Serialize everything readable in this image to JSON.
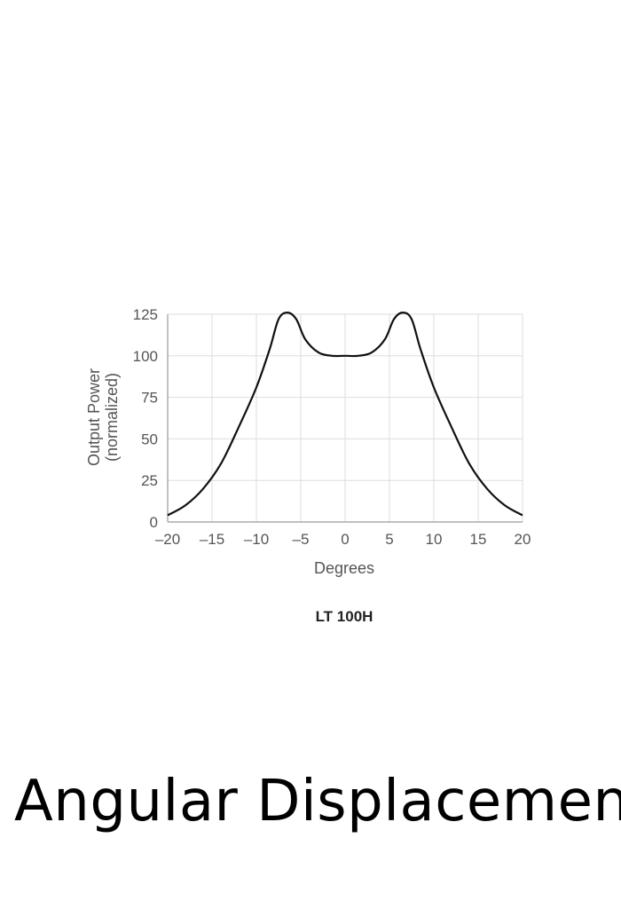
{
  "chart_data": {
    "type": "line",
    "caption": "LT 100H",
    "xlabel": "Degrees",
    "ylabel": "Output Power",
    "ylabel_sub": "(normalized)",
    "xlim": [
      -20,
      20
    ],
    "ylim": [
      0,
      125
    ],
    "xticks": [
      -20,
      -15,
      -10,
      -5,
      0,
      5,
      10,
      15,
      20
    ],
    "xtick_labels": [
      "–20",
      "–15",
      "–10",
      "–5",
      "0",
      "5",
      "10",
      "15",
      "20"
    ],
    "yticks": [
      0,
      25,
      50,
      75,
      100,
      125
    ],
    "ytick_labels": [
      "0",
      "25",
      "50",
      "75",
      "100",
      "125"
    ],
    "grid": true,
    "line_color": "#111111",
    "grid_color": "#dddddd",
    "series": [
      {
        "x": [
          -20,
          -18,
          -16,
          -14,
          -12,
          -10,
          -8.5,
          -7.5,
          -6.5,
          -5.5,
          -4.5,
          -3,
          -1.5,
          0,
          1.5,
          3,
          4.5,
          5.5,
          6.5,
          7.5,
          8.5,
          10,
          12,
          14,
          16,
          18,
          20
        ],
        "y": [
          4,
          10,
          20,
          35,
          57,
          81,
          104,
          122,
          126,
          122,
          110,
          102,
          100,
          100,
          100,
          102,
          110,
          122,
          126,
          122,
          104,
          81,
          57,
          35,
          20,
          10,
          4
        ]
      }
    ]
  },
  "footer": {
    "caption": "Angular Displacement"
  }
}
